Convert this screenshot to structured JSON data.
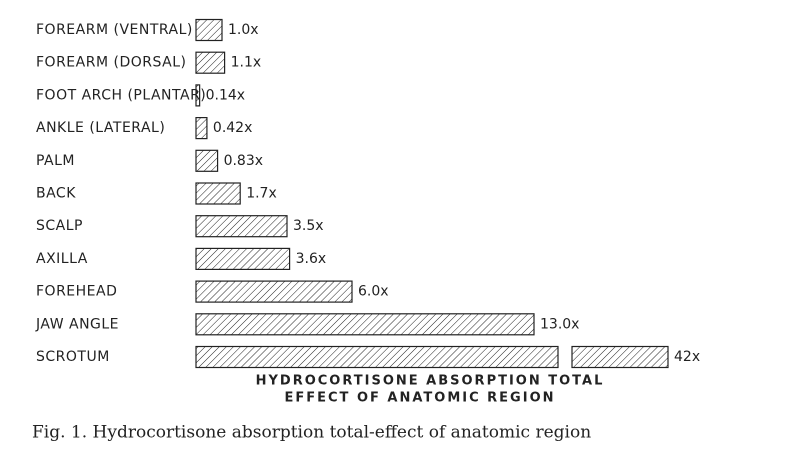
{
  "chart_data": {
    "type": "bar",
    "orientation": "horizontal",
    "categories": [
      "FOREARM (VENTRAL)",
      "FOREARM (DORSAL)",
      "FOOT ARCH (PLANTAR)",
      "ANKLE (LATERAL)",
      "PALM",
      "BACK",
      "SCALP",
      "AXILLA",
      "FOREHEAD",
      "JAW ANGLE",
      "SCROTUM"
    ],
    "values": [
      1.0,
      1.1,
      0.14,
      0.42,
      0.83,
      1.7,
      3.5,
      3.6,
      6.0,
      13.0,
      42
    ],
    "value_labels": [
      "1.0x",
      "1.1x",
      "0.14x",
      "0.42x",
      "0.83x",
      "1.7x",
      "3.5x",
      "3.6x",
      "6.0x",
      "13.0x",
      "42x"
    ],
    "color": "#222222",
    "x_label": [
      "HYDROCORTISONE ABSORPTION   TOTAL",
      "EFFECT OF ANATOMIC REGION"
    ],
    "caption": "Fig. 1. Hydrocortisone absorption total-effect of anatomic region"
  }
}
